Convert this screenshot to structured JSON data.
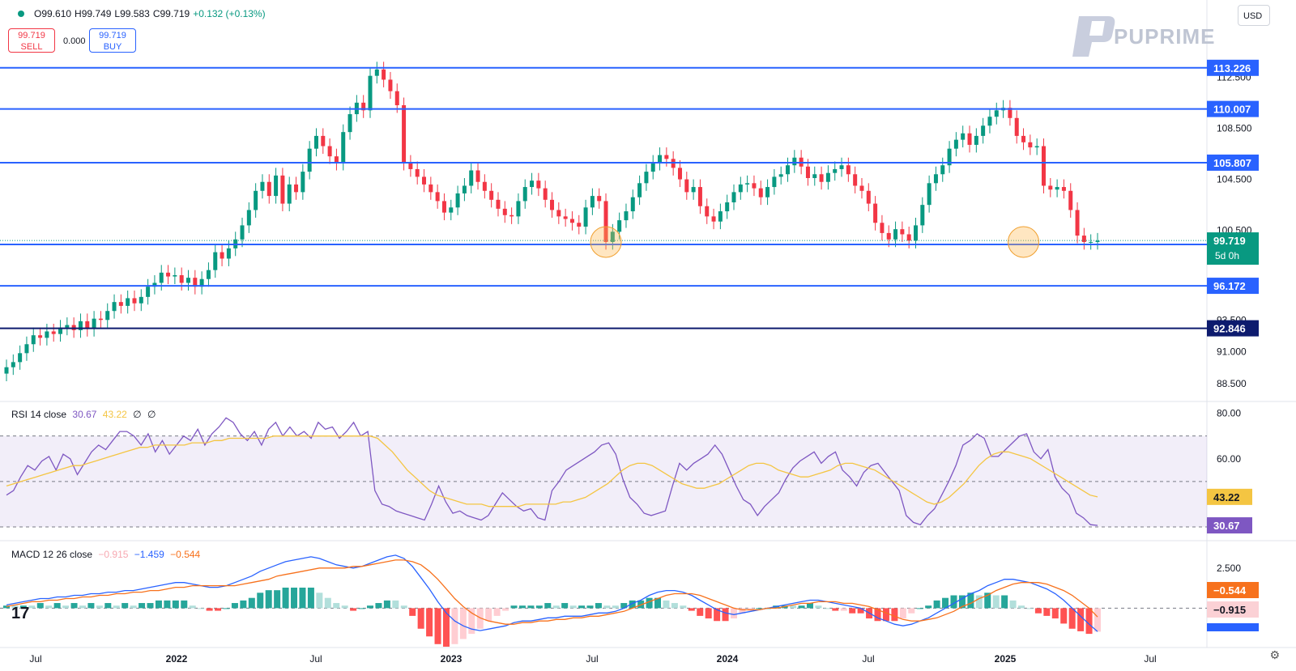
{
  "ohlc": {
    "open": "O99.610",
    "high": "H99.749",
    "low": "L99.583",
    "close": "C99.719",
    "change": "+0.132 (+0.13%)"
  },
  "trade": {
    "sell_price": "99.719",
    "sell_label": "SELL",
    "spread": "0.000",
    "buy_price": "99.719",
    "buy_label": "BUY"
  },
  "currency": "USD",
  "logo_text": "PUPRIME",
  "chart_data": [
    {
      "type": "candlestick",
      "y_ticks": [
        88.5,
        91.0,
        93.5,
        96.0,
        98.5,
        100.5,
        102.5,
        104.5,
        106.5,
        108.5,
        110.5,
        112.5
      ],
      "y_tick_labels": [
        "88.500",
        "91.000",
        "93.500",
        "",
        "",
        "100.500",
        "",
        "104.500",
        "",
        "108.500",
        "",
        "112.500"
      ],
      "ylim": [
        87.5,
        116.0
      ],
      "x_labels": [
        "Jul",
        "2022",
        "Jul",
        "2023",
        "Jul",
        "2024",
        "Jul",
        "2025",
        "Jul"
      ],
      "x_label_bold": [
        false,
        true,
        false,
        true,
        false,
        true,
        false,
        true,
        false
      ],
      "horizontal_levels": [
        {
          "label": "113.226",
          "value": 113.226,
          "color": "#2962ff"
        },
        {
          "label": "110.007",
          "value": 110.007,
          "color": "#2962ff"
        },
        {
          "label": "105.807",
          "value": 105.807,
          "color": "#2962ff"
        },
        {
          "label": "99.405",
          "value": 99.405,
          "color": "#2962ff"
        },
        {
          "label": "96.172",
          "value": 96.172,
          "color": "#2962ff"
        },
        {
          "label": "92.846",
          "value": 92.846,
          "color": "#0d1b6e"
        }
      ],
      "last_price": {
        "label": "99.719",
        "countdown": "5d 0h",
        "value": 99.719,
        "color": "#089981"
      },
      "highlights": [
        {
          "x_index": 89,
          "value": 99.6
        },
        {
          "x_index": 151,
          "value": 99.6
        }
      ],
      "series_closes": [
        89.8,
        90.2,
        90.9,
        91.6,
        92.3,
        92.1,
        92.6,
        92.4,
        92.9,
        93.1,
        92.7,
        93.4,
        92.8,
        93.6,
        93.5,
        94.2,
        94.9,
        94.6,
        95.2,
        94.8,
        95.3,
        96.1,
        96.4,
        97.2,
        96.9,
        97.0,
        96.4,
        96.8,
        96.1,
        96.7,
        97.4,
        98.8,
        98.3,
        99.1,
        99.8,
        100.9,
        102.1,
        103.6,
        104.3,
        103.2,
        104.8,
        102.6,
        104.1,
        103.5,
        105.1,
        106.9,
        107.9,
        107.1,
        106.3,
        105.8,
        108.2,
        109.6,
        110.5,
        109.9,
        112.6,
        113.1,
        112.3,
        111.4,
        110.3,
        105.8,
        105.3,
        104.7,
        104.1,
        103.5,
        102.8,
        101.9,
        102.3,
        103.4,
        104.0,
        105.2,
        104.3,
        103.6,
        102.9,
        102.2,
        101.7,
        101.6,
        102.8,
        103.9,
        104.4,
        103.8,
        102.9,
        102.1,
        101.6,
        101.4,
        101.1,
        100.8,
        102.3,
        103.2,
        102.8,
        99.6,
        100.4,
        101.3,
        102.0,
        103.1,
        104.2,
        105.1,
        105.8,
        106.4,
        106.1,
        105.4,
        104.5,
        103.5,
        103.9,
        102.4,
        101.6,
        101.2,
        102.0,
        102.7,
        103.5,
        104.1,
        104.2,
        103.8,
        103.1,
        103.9,
        104.7,
        104.9,
        105.6,
        106.2,
        105.5,
        104.6,
        104.9,
        104.3,
        105.0,
        105.3,
        105.6,
        104.9,
        104.0,
        103.6,
        102.6,
        101.1,
        100.3,
        99.8,
        100.6,
        100.2,
        99.7,
        100.9,
        102.5,
        104.2,
        104.9,
        105.6,
        106.9,
        107.6,
        108.1,
        107.2,
        107.9,
        108.7,
        109.4,
        109.9,
        110.1,
        109.3,
        107.9,
        107.4,
        107.0,
        107.1,
        104.0,
        103.7,
        103.9,
        103.6,
        102.1,
        100.1,
        99.6,
        99.6,
        99.7
      ],
      "series_opens": [
        89.3,
        89.8,
        90.2,
        90.9,
        91.6,
        92.3,
        92.1,
        92.6,
        92.4,
        92.9,
        93.1,
        92.7,
        93.4,
        92.8,
        93.6,
        93.5,
        94.2,
        94.9,
        94.6,
        95.2,
        94.8,
        95.3,
        96.1,
        96.4,
        97.2,
        96.9,
        97.0,
        96.4,
        96.8,
        96.1,
        96.7,
        97.4,
        98.8,
        98.3,
        99.1,
        99.8,
        100.9,
        102.1,
        103.6,
        104.3,
        103.2,
        104.8,
        102.6,
        104.1,
        103.5,
        105.1,
        106.9,
        107.9,
        107.1,
        106.3,
        105.8,
        108.2,
        109.6,
        110.5,
        109.9,
        112.6,
        113.1,
        112.3,
        111.4,
        110.3,
        105.8,
        105.3,
        104.7,
        104.1,
        103.5,
        102.8,
        101.9,
        102.3,
        103.4,
        104.0,
        105.2,
        104.3,
        103.6,
        102.9,
        102.2,
        101.7,
        101.6,
        102.8,
        103.9,
        104.4,
        103.8,
        102.9,
        102.1,
        101.6,
        101.4,
        101.1,
        100.8,
        102.3,
        103.2,
        102.8,
        99.6,
        100.4,
        101.3,
        102.0,
        103.1,
        104.2,
        105.1,
        105.8,
        106.4,
        106.1,
        105.4,
        104.5,
        103.5,
        103.9,
        102.4,
        101.6,
        101.2,
        102.0,
        102.7,
        103.5,
        104.1,
        104.2,
        103.8,
        103.1,
        103.9,
        104.7,
        104.9,
        105.6,
        106.2,
        105.5,
        104.6,
        104.9,
        104.3,
        105.0,
        105.3,
        105.6,
        104.9,
        104.0,
        103.6,
        102.6,
        101.1,
        100.3,
        99.8,
        100.6,
        100.2,
        99.7,
        100.9,
        102.5,
        104.2,
        104.9,
        105.6,
        106.9,
        107.6,
        108.1,
        107.2,
        107.9,
        108.7,
        109.4,
        109.9,
        110.1,
        109.3,
        107.9,
        107.4,
        107.0,
        107.1,
        104.0,
        103.7,
        103.9,
        103.6,
        102.1,
        100.1,
        99.6,
        99.6
      ]
    },
    {
      "type": "line",
      "title": "RSI 14 close",
      "values_label": [
        "30.67",
        "43.22",
        "∅",
        "∅"
      ],
      "y_tick_labels": [
        "80.00",
        "60.00"
      ],
      "y_ticks": [
        80,
        60
      ],
      "ylim": [
        25,
        82
      ],
      "band": [
        30,
        70
      ],
      "midline": 50,
      "series": [
        {
          "name": "RSI",
          "color": "#7e57c2",
          "label": "30.67",
          "values": [
            44,
            46,
            52,
            57,
            55,
            59,
            61,
            55,
            62,
            60,
            53,
            58,
            63,
            66,
            64,
            68,
            72,
            72,
            70,
            66,
            71,
            63,
            68,
            62,
            66,
            70,
            68,
            73,
            66,
            71,
            74,
            78,
            76,
            71,
            68,
            72,
            66,
            73,
            76,
            70,
            74,
            70,
            72,
            69,
            76,
            73,
            74,
            69,
            72,
            76,
            70,
            72,
            46,
            40,
            39,
            37,
            36,
            35,
            34,
            33,
            40,
            48,
            41,
            36,
            37,
            35,
            34,
            33,
            35,
            40,
            45,
            42,
            39,
            37,
            38,
            34,
            33,
            46,
            50,
            55,
            57,
            59,
            61,
            63,
            66,
            67,
            62,
            51,
            43,
            40,
            36,
            35,
            36,
            37,
            48,
            58,
            55,
            58,
            60,
            62,
            66,
            62,
            55,
            48,
            42,
            40,
            35,
            39,
            42,
            45,
            51,
            56,
            59,
            61,
            63,
            58,
            61,
            63,
            55,
            52,
            48,
            54,
            57,
            58,
            54,
            50,
            46,
            35,
            32,
            31,
            35,
            38,
            44,
            50,
            57,
            66,
            68,
            71,
            69,
            61,
            61,
            64,
            67,
            70,
            71,
            63,
            60,
            64,
            52,
            47,
            44,
            36,
            34,
            31,
            30.67
          ]
        },
        {
          "name": "RSI MA",
          "color": "#f4c542",
          "label": "43.22",
          "values": [
            48,
            49,
            50,
            51,
            52,
            53,
            54,
            55,
            56,
            57,
            57,
            58,
            59,
            60,
            61,
            62,
            63,
            64,
            65,
            65,
            66,
            66,
            66,
            66,
            66,
            67,
            67,
            67,
            68,
            68,
            69,
            69,
            69,
            69,
            69,
            69,
            70,
            70,
            70,
            70,
            70,
            70,
            70,
            70,
            70,
            70,
            70,
            70,
            70,
            70,
            69,
            66,
            63,
            59,
            55,
            52,
            49,
            46,
            44,
            43,
            42,
            41,
            40,
            40,
            40,
            39,
            39,
            39,
            39,
            39,
            40,
            40,
            40,
            40,
            40,
            41,
            41,
            42,
            43,
            45,
            47,
            49,
            52,
            55,
            57,
            58,
            58,
            57,
            55,
            53,
            51,
            49,
            48,
            47,
            47,
            48,
            49,
            51,
            53,
            55,
            57,
            58,
            58,
            57,
            55,
            54,
            53,
            52,
            52,
            53,
            54,
            55,
            57,
            58,
            58,
            57,
            56,
            55,
            53,
            51,
            49,
            47,
            45,
            43,
            41,
            40,
            41,
            43,
            46,
            49,
            53,
            57,
            60,
            62,
            63,
            63,
            62,
            61,
            60,
            58,
            56,
            54,
            52,
            50,
            48,
            46,
            44,
            43.22
          ]
        }
      ]
    },
    {
      "type": "macd",
      "title": "MACD 12 26 close",
      "values_label": [
        "−0.915",
        "−1.459",
        "−0.544"
      ],
      "y_ticks": [
        2.5
      ],
      "y_tick_labels": [
        "2.500"
      ],
      "ylim": [
        -2.2,
        3.6
      ],
      "value_labels": [
        {
          "label": "−0.544",
          "color": "#f7711c"
        },
        {
          "label": "−0.915",
          "color": "#fbd1d5"
        }
      ],
      "series": [
        {
          "name": "MACD",
          "color": "#2962ff",
          "label": "−1.459",
          "values": [
            0.2,
            0.3,
            0.4,
            0.5,
            0.6,
            0.6,
            0.7,
            0.7,
            0.8,
            0.8,
            0.9,
            0.9,
            1.0,
            1.0,
            1.1,
            1.1,
            1.2,
            1.3,
            1.4,
            1.5,
            1.6,
            1.6,
            1.5,
            1.4,
            1.3,
            1.3,
            1.4,
            1.6,
            1.8,
            2.0,
            2.3,
            2.5,
            2.7,
            2.9,
            3.0,
            3.1,
            3.2,
            3.1,
            2.9,
            2.7,
            2.6,
            2.5,
            2.6,
            2.8,
            3.0,
            3.2,
            3.3,
            3.1,
            2.6,
            1.9,
            1.2,
            0.4,
            -0.3,
            -0.8,
            -1.1,
            -1.3,
            -1.4,
            -1.3,
            -1.2,
            -1.1,
            -0.9,
            -0.8,
            -0.8,
            -0.7,
            -0.6,
            -0.6,
            -0.5,
            -0.5,
            -0.5,
            -0.4,
            -0.3,
            -0.3,
            -0.2,
            0.0,
            0.3,
            0.5,
            0.8,
            1.0,
            1.1,
            1.1,
            1.0,
            0.8,
            0.5,
            0.2,
            -0.1,
            -0.3,
            -0.4,
            -0.3,
            -0.2,
            -0.1,
            0.0,
            0.1,
            0.2,
            0.3,
            0.4,
            0.5,
            0.5,
            0.4,
            0.3,
            0.2,
            0.1,
            0.0,
            -0.3,
            -0.6,
            -0.8,
            -1.0,
            -1.1,
            -1.0,
            -0.8,
            -0.6,
            -0.3,
            0.0,
            0.3,
            0.6,
            0.9,
            1.1,
            1.4,
            1.6,
            1.8,
            1.8,
            1.7,
            1.6,
            1.4,
            1.2,
            0.9,
            0.5,
            0.0,
            -0.5,
            -1.0,
            -1.459
          ]
        },
        {
          "name": "Signal",
          "color": "#f7711c",
          "label": "−0.544",
          "values": [
            0.1,
            0.2,
            0.3,
            0.4,
            0.4,
            0.5,
            0.5,
            0.6,
            0.6,
            0.7,
            0.7,
            0.8,
            0.8,
            0.9,
            0.9,
            1.0,
            1.0,
            1.1,
            1.1,
            1.2,
            1.3,
            1.3,
            1.4,
            1.4,
            1.4,
            1.4,
            1.4,
            1.4,
            1.5,
            1.6,
            1.7,
            1.8,
            2.0,
            2.1,
            2.2,
            2.3,
            2.4,
            2.5,
            2.5,
            2.5,
            2.5,
            2.6,
            2.6,
            2.7,
            2.8,
            2.9,
            3.0,
            3.0,
            2.9,
            2.7,
            2.3,
            1.8,
            1.2,
            0.6,
            0.1,
            -0.3,
            -0.6,
            -0.8,
            -0.9,
            -1.0,
            -1.0,
            -0.9,
            -0.9,
            -0.8,
            -0.8,
            -0.7,
            -0.7,
            -0.6,
            -0.6,
            -0.5,
            -0.5,
            -0.4,
            -0.3,
            -0.2,
            0.0,
            0.2,
            0.4,
            0.6,
            0.8,
            0.9,
            0.9,
            0.9,
            0.8,
            0.6,
            0.4,
            0.2,
            0.0,
            -0.1,
            -0.1,
            -0.1,
            0.0,
            0.0,
            0.1,
            0.2,
            0.3,
            0.3,
            0.4,
            0.4,
            0.4,
            0.3,
            0.3,
            0.2,
            0.1,
            -0.1,
            -0.3,
            -0.5,
            -0.7,
            -0.8,
            -0.8,
            -0.7,
            -0.6,
            -0.4,
            -0.2,
            0.1,
            0.3,
            0.6,
            0.8,
            1.1,
            1.3,
            1.5,
            1.6,
            1.6,
            1.6,
            1.5,
            1.3,
            1.1,
            0.8,
            0.4,
            0.0,
            -0.544
          ]
        }
      ]
    }
  ]
}
